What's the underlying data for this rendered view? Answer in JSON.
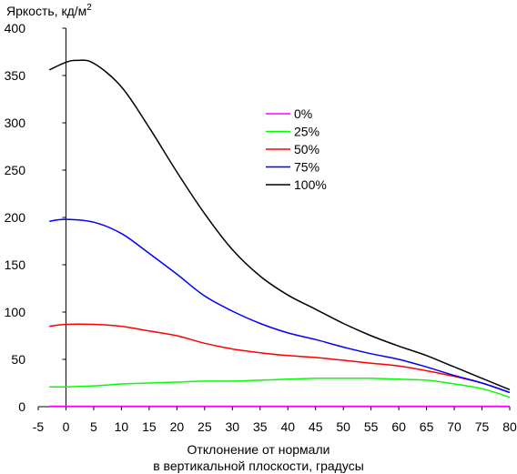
{
  "chart_data": {
    "type": "line",
    "ylabel": "Яркость, кд/м",
    "ylabel_sup": "2",
    "xlabel": [
      "Отклонение от нормали",
      "в вертикальной плоскости, градусы"
    ],
    "xlim": [
      -5,
      80
    ],
    "ylim": [
      0,
      400
    ],
    "xticks": [
      -5,
      0,
      5,
      10,
      15,
      20,
      25,
      30,
      35,
      40,
      45,
      50,
      55,
      60,
      65,
      70,
      75,
      80
    ],
    "yticks": [
      0,
      50,
      100,
      150,
      200,
      250,
      300,
      350,
      400
    ],
    "grid": false,
    "legend_position": "upper-center",
    "series": [
      {
        "name": "0%",
        "color": "#ff00ff",
        "x": [
          -3,
          0,
          10,
          20,
          30,
          40,
          50,
          60,
          70,
          80
        ],
        "y": [
          0.5,
          0.5,
          0.5,
          0.5,
          0.5,
          0.5,
          0.5,
          0.5,
          0.5,
          0.5
        ]
      },
      {
        "name": "25%",
        "color": "#00ff00",
        "x": [
          -3,
          0,
          5,
          10,
          15,
          20,
          25,
          30,
          35,
          40,
          45,
          50,
          55,
          60,
          65,
          70,
          75,
          80
        ],
        "y": [
          21,
          21,
          22,
          24,
          25,
          26,
          27,
          27,
          28,
          29,
          30,
          30,
          30,
          29,
          28,
          24,
          19,
          10
        ]
      },
      {
        "name": "50%",
        "color": "#ff0000",
        "x": [
          -3,
          0,
          5,
          10,
          15,
          20,
          25,
          30,
          35,
          40,
          45,
          50,
          55,
          60,
          65,
          70,
          75,
          80
        ],
        "y": [
          85,
          87,
          87,
          85,
          80,
          75,
          67,
          61,
          57,
          54,
          52,
          49,
          46,
          43,
          38,
          32,
          25,
          15
        ]
      },
      {
        "name": "75%",
        "color": "#0000ff",
        "x": [
          -3,
          0,
          5,
          10,
          15,
          20,
          25,
          30,
          35,
          40,
          45,
          50,
          55,
          60,
          65,
          70,
          75,
          80
        ],
        "y": [
          196,
          198,
          195,
          183,
          162,
          140,
          117,
          101,
          88,
          78,
          71,
          63,
          56,
          50,
          42,
          33,
          25,
          15
        ]
      },
      {
        "name": "100%",
        "color": "#000000",
        "x": [
          -3,
          0,
          2,
          5,
          10,
          15,
          20,
          25,
          30,
          35,
          40,
          45,
          50,
          55,
          60,
          65,
          70,
          75,
          80
        ],
        "y": [
          356,
          364,
          366,
          363,
          338,
          295,
          248,
          204,
          166,
          138,
          118,
          103,
          88,
          75,
          64,
          54,
          42,
          30,
          18
        ]
      }
    ]
  }
}
